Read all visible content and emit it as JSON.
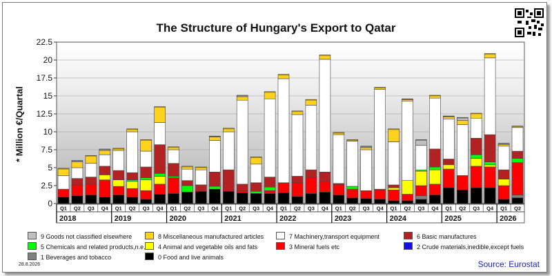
{
  "chart_data": {
    "type": "bar",
    "title": "The Structure of Hungary's Export to Qatar",
    "ylabel": "* Million €/Quartal",
    "ylim": [
      0,
      22.5
    ],
    "y_ticks": [
      "0",
      "2.5",
      "5",
      "7.5",
      "10",
      "12.5",
      "15",
      "17.5",
      "20",
      "22.5"
    ],
    "grid": "horizontal",
    "background": "gradient",
    "legend_placement": "bottom",
    "years": [
      "2018",
      "2019",
      "2020",
      "2021",
      "2022",
      "2023",
      "2024",
      "2025",
      "2026"
    ],
    "categories": [
      "Q1",
      "Q2",
      "Q3",
      "Q4",
      "Q1",
      "Q2",
      "Q3",
      "Q4",
      "Q1",
      "Q2",
      "Q3",
      "Q4",
      "Q1",
      "Q2",
      "Q3",
      "Q4",
      "Q1",
      "Q2",
      "Q3",
      "Q4",
      "Q1",
      "Q2",
      "Q3",
      "Q4",
      "Q1",
      "Q2",
      "Q3",
      "Q4",
      "Q1",
      "Q2",
      "Q3",
      "Q4",
      "Q1",
      "Q2"
    ],
    "series": [
      {
        "name": "0 Food and live animals",
        "color": "#000000",
        "values": [
          0.9,
          1.1,
          1.2,
          0.9,
          1.2,
          0.9,
          0.6,
          1.3,
          1.4,
          1.6,
          1.7,
          2.0,
          1.7,
          1.5,
          1.4,
          1.4,
          1.5,
          1.0,
          1.4,
          1.6,
          1.2,
          0.8,
          0.7,
          0.6,
          0.4,
          0.4,
          0.6,
          1.2,
          2.2,
          1.9,
          2.2,
          2.2,
          0.6,
          0.8
        ]
      },
      {
        "name": "1 Beverages and tobacco",
        "color": "#7f7f7f",
        "values": [
          0,
          0,
          0,
          0,
          0,
          0,
          0,
          0,
          0,
          0,
          0,
          0,
          0,
          0,
          0,
          0,
          0,
          0,
          0,
          0,
          0,
          0,
          0,
          0,
          0,
          0,
          0.5,
          0,
          0,
          0,
          0,
          0,
          0,
          0.4
        ]
      },
      {
        "name": "2 Crude materials,inedible,except fuels",
        "color": "#1010e0",
        "values": [
          0,
          0,
          0,
          0,
          0,
          0,
          0,
          0,
          0,
          0,
          0,
          0,
          0,
          0,
          0,
          0,
          0,
          0,
          0,
          0,
          0,
          0,
          0,
          0,
          0,
          0,
          0,
          0,
          0,
          0,
          0,
          0,
          0,
          0
        ]
      },
      {
        "name": "3 Mineral fuels etc",
        "color": "#ff0000",
        "values": [
          1.1,
          1.5,
          1.5,
          2.4,
          1.2,
          1.2,
          1.2,
          1.4,
          2.2,
          0,
          0,
          0,
          0,
          0.3,
          0,
          0.4,
          1.4,
          1.9,
          2.2,
          1.4,
          1.4,
          1.2,
          1.1,
          1.3,
          1.5,
          0.9,
          1.4,
          1.5,
          2.6,
          2.0,
          3.0,
          2.9,
          1.9,
          4.5
        ]
      },
      {
        "name": "4 Animal and vegetable oils and fats",
        "color": "#ffff00",
        "values": [
          0,
          0,
          0,
          0.7,
          0.9,
          1.0,
          1.5,
          1.1,
          0,
          0,
          0,
          0,
          0,
          0,
          0,
          0,
          0,
          0,
          0,
          0,
          0,
          0,
          0,
          0,
          0.3,
          1.9,
          2.0,
          2.0,
          0.6,
          0,
          1.1,
          0.3,
          0.9,
          0
        ]
      },
      {
        "name": "5 Chemicals and related products,n.e.s.",
        "color": "#00ff00",
        "values": [
          0,
          0,
          0,
          0,
          0,
          0.2,
          0.3,
          0.4,
          0.2,
          0.9,
          0,
          0.4,
          0,
          0,
          0.3,
          0.5,
          0,
          0,
          0,
          0,
          0,
          0.4,
          0,
          0,
          0,
          0,
          0.2,
          0.4,
          0,
          0,
          0.5,
          0.4,
          0,
          0.6
        ]
      },
      {
        "name": "6 Basic manufactures",
        "color": "#b22222",
        "values": [
          0,
          0.9,
          1.0,
          1.2,
          1.3,
          1.0,
          1.5,
          4.0,
          1.8,
          0.7,
          0.9,
          2.0,
          3.0,
          0.9,
          1.2,
          1.4,
          0,
          0.9,
          1.1,
          1.4,
          0.2,
          0,
          0,
          0.1,
          0.4,
          0,
          0,
          2.5,
          0.8,
          0,
          2.3,
          3.8,
          1.3,
          1.0
        ]
      },
      {
        "name": "7 Machinery,transport equipment",
        "color": "#ffffff",
        "values": [
          1.9,
          1.5,
          1.9,
          1.6,
          2.8,
          5.7,
          2.2,
          3.1,
          1.9,
          1.6,
          2.1,
          4.4,
          5.3,
          11.7,
          2.6,
          10.9,
          14.5,
          8.6,
          9.0,
          15.7,
          6.8,
          6.3,
          5.7,
          13.9,
          6.0,
          11.1,
          3.4,
          7.1,
          5.6,
          7.1,
          2.8,
          10.7,
          3.3,
          3.3
        ]
      },
      {
        "name": "8 Miscellaneous manufactured articles",
        "color": "#ffd21f",
        "values": [
          1.0,
          0.8,
          1.1,
          0.6,
          0.3,
          0.4,
          1.6,
          2.2,
          0.4,
          0.4,
          0.4,
          0.5,
          0.5,
          0.5,
          1.0,
          1.0,
          0.6,
          0.5,
          0.8,
          0.6,
          0.3,
          0.2,
          0.3,
          0.3,
          1.8,
          0.2,
          0,
          0.4,
          0.3,
          0.6,
          0.7,
          0.6,
          0.2,
          0.2
        ]
      },
      {
        "name": "9 Goods not classified elsewhere",
        "color": "#c0c0c0",
        "values": [
          0,
          0.2,
          0,
          0.2,
          0,
          0,
          0,
          0,
          0,
          0,
          0,
          0.1,
          0,
          0.2,
          0,
          0,
          0,
          0,
          0,
          0,
          0,
          0,
          0.2,
          0,
          0,
          0.1,
          0.8,
          0,
          0.1,
          0.4,
          0,
          0,
          0.2,
          0
        ]
      }
    ],
    "source": "Source: Eurostat",
    "date": "28.8.2026"
  },
  "icons": {
    "qr": "qr-code-icon"
  }
}
